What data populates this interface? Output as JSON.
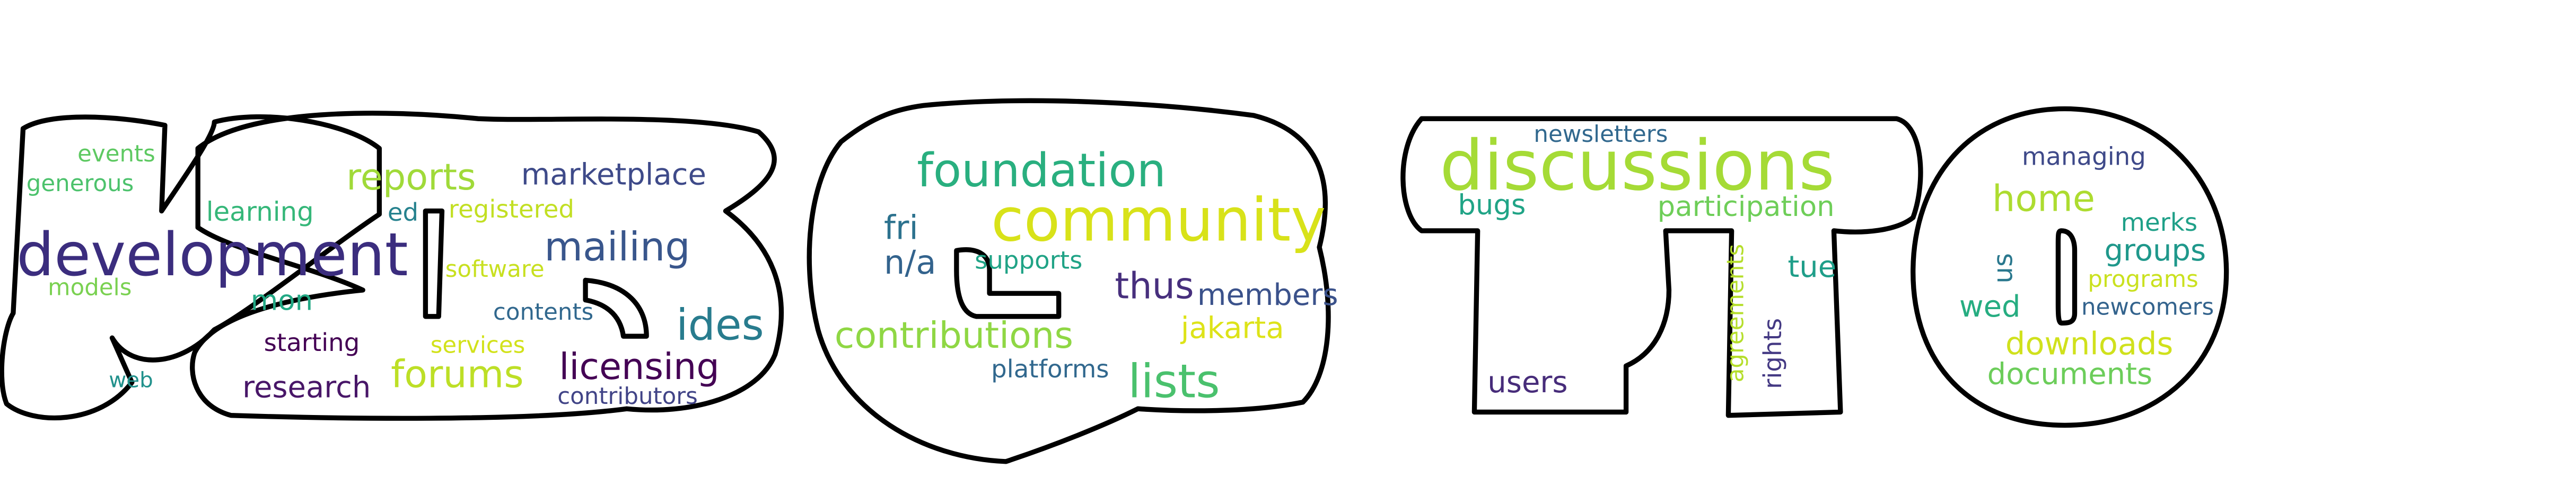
{
  "words": [
    {
      "text": "development",
      "color": "#3b2d7e"
    },
    {
      "text": "events",
      "color": "#5ec962"
    },
    {
      "text": "generous",
      "color": "#4cc26c"
    },
    {
      "text": "learning",
      "color": "#35b779"
    },
    {
      "text": "ed",
      "color": "#26828e"
    },
    {
      "text": "reports",
      "color": "#a0da39"
    },
    {
      "text": "marketplace",
      "color": "#3e4a89"
    },
    {
      "text": "registered",
      "color": "#c2df23"
    },
    {
      "text": "mailing",
      "color": "#39568c"
    },
    {
      "text": "software",
      "color": "#c8e020"
    },
    {
      "text": "models",
      "color": "#7ad151"
    },
    {
      "text": "mon",
      "color": "#22a884"
    },
    {
      "text": "contents",
      "color": "#31688e"
    },
    {
      "text": "ides",
      "color": "#287c8e"
    },
    {
      "text": "starting",
      "color": "#440154"
    },
    {
      "text": "services",
      "color": "#d2e21b"
    },
    {
      "text": "licensing",
      "color": "#440154"
    },
    {
      "text": "forums",
      "color": "#bddf26"
    },
    {
      "text": "research",
      "color": "#481668"
    },
    {
      "text": "contributors",
      "color": "#414487"
    },
    {
      "text": "web",
      "color": "#21918c"
    },
    {
      "text": "foundation",
      "color": "#29af7f"
    },
    {
      "text": "community",
      "color": "#d8e219"
    },
    {
      "text": "fri",
      "color": "#2c728e"
    },
    {
      "text": "n/a",
      "color": "#33638d"
    },
    {
      "text": "supports",
      "color": "#20a386"
    },
    {
      "text": "thus",
      "color": "#472f7d"
    },
    {
      "text": "members",
      "color": "#3b528b"
    },
    {
      "text": "contributions",
      "color": "#8fd744"
    },
    {
      "text": "jakarta",
      "color": "#dde318"
    },
    {
      "text": "platforms",
      "color": "#31688e"
    },
    {
      "text": "lists",
      "color": "#4ac16d"
    },
    {
      "text": "newsletters",
      "color": "#31688e"
    },
    {
      "text": "discussions",
      "color": "#a5db36"
    },
    {
      "text": "bugs",
      "color": "#20a486"
    },
    {
      "text": "participation",
      "color": "#6ece58"
    },
    {
      "text": "tue",
      "color": "#1f9e89"
    },
    {
      "text": "agreements",
      "color": "#b5de2b"
    },
    {
      "text": "rights",
      "color": "#443983"
    },
    {
      "text": "users",
      "color": "#472c7a"
    },
    {
      "text": "managing",
      "color": "#3e4989"
    },
    {
      "text": "home",
      "color": "#addc30"
    },
    {
      "text": "merks",
      "color": "#1fa088"
    },
    {
      "text": "groups",
      "color": "#1f988b"
    },
    {
      "text": "us",
      "color": "#2a788e"
    },
    {
      "text": "programs",
      "color": "#cae11f"
    },
    {
      "text": "wed",
      "color": "#26ad81"
    },
    {
      "text": "newcomers",
      "color": "#33638d"
    },
    {
      "text": "downloads",
      "color": "#d0e11c"
    },
    {
      "text": "documents",
      "color": "#6ccd5a"
    }
  ]
}
